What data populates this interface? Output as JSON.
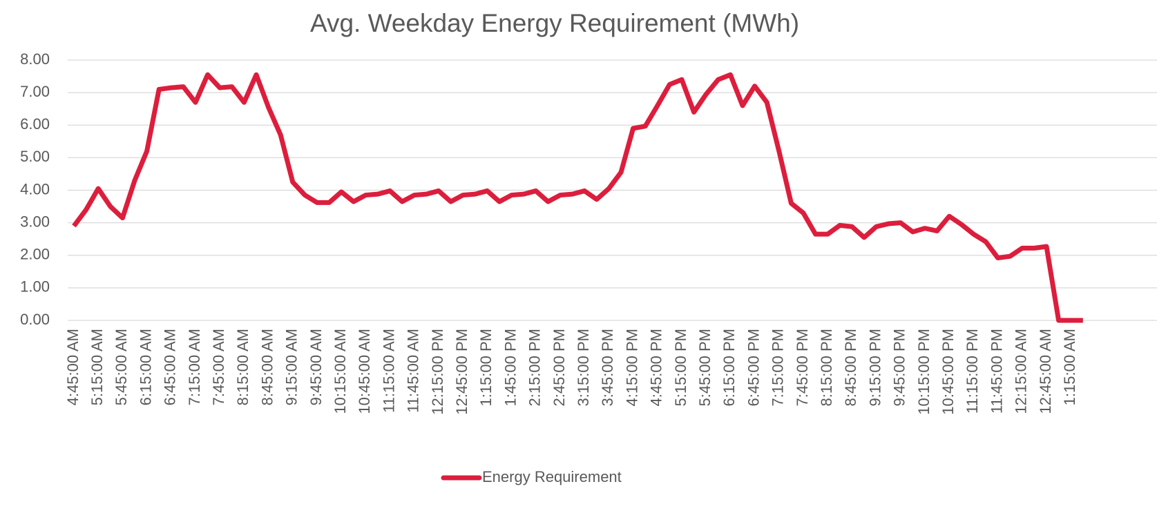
{
  "chart_data": {
    "type": "line",
    "title": "Avg. Weekday Energy Requirement (MWh)",
    "categories": [
      "4:45:00 AM",
      null,
      "5:15:00 AM",
      null,
      "5:45:00 AM",
      null,
      "6:15:00 AM",
      null,
      "6:45:00 AM",
      null,
      "7:15:00 AM",
      null,
      "7:45:00 AM",
      null,
      "8:15:00 AM",
      null,
      "8:45:00 AM",
      null,
      "9:15:00 AM",
      null,
      "9:45:00 AM",
      null,
      "10:15:00 AM",
      null,
      "10:45:00 AM",
      null,
      "11:15:00 AM",
      null,
      "11:45:00 AM",
      null,
      "12:15:00 PM",
      null,
      "12:45:00 PM",
      null,
      "1:15:00 PM",
      null,
      "1:45:00 PM",
      null,
      "2:15:00 PM",
      null,
      "2:45:00 PM",
      null,
      "3:15:00 PM",
      null,
      "3:45:00 PM",
      null,
      "4:15:00 PM",
      null,
      "4:45:00 PM",
      null,
      "5:15:00 PM",
      null,
      "5:45:00 PM",
      null,
      "6:15:00 PM",
      null,
      "6:45:00 PM",
      null,
      "7:15:00 PM",
      null,
      "7:45:00 PM",
      null,
      "8:15:00 PM",
      null,
      "8:45:00 PM",
      null,
      "9:15:00 PM",
      null,
      "9:45:00 PM",
      null,
      "10:15:00 PM",
      null,
      "10:45:00 PM",
      null,
      "11:15:00 PM",
      null,
      "11:45:00 PM",
      null,
      "12:15:00 AM",
      null,
      "12:45:00 AM",
      null,
      "1:15:00 AM",
      null
    ],
    "series": [
      {
        "name": "Energy Requirement",
        "color": "#dc1e3c",
        "values": [
          2.9,
          3.4,
          4.05,
          3.5,
          3.15,
          4.3,
          5.2,
          7.1,
          7.15,
          7.18,
          6.7,
          7.55,
          7.15,
          7.18,
          6.7,
          7.55,
          6.55,
          5.7,
          4.25,
          3.85,
          3.62,
          3.62,
          3.95,
          3.65,
          3.85,
          3.88,
          3.98,
          3.65,
          3.85,
          3.88,
          3.98,
          3.65,
          3.85,
          3.88,
          3.98,
          3.65,
          3.85,
          3.88,
          3.98,
          3.65,
          3.85,
          3.88,
          3.98,
          3.72,
          4.05,
          4.55,
          5.9,
          5.97,
          6.6,
          7.25,
          7.4,
          6.4,
          6.95,
          7.4,
          7.55,
          6.6,
          7.2,
          6.7,
          5.2,
          3.6,
          3.3,
          2.65,
          2.65,
          2.92,
          2.88,
          2.55,
          2.88,
          2.97,
          3.0,
          2.72,
          2.83,
          2.75,
          3.2,
          2.95,
          2.65,
          2.42,
          1.92,
          1.97,
          2.22,
          2.22,
          2.27,
          0,
          0,
          0
        ]
      }
    ],
    "ylim": [
      0,
      8
    ],
    "yticks": [
      {
        "value": 0,
        "label": "0.00"
      },
      {
        "value": 1,
        "label": "1.00"
      },
      {
        "value": 2,
        "label": "2.00"
      },
      {
        "value": 3,
        "label": "3.00"
      },
      {
        "value": 4,
        "label": "4.00"
      },
      {
        "value": 5,
        "label": "5.00"
      },
      {
        "value": 6,
        "label": "6.00"
      },
      {
        "value": 7,
        "label": "7.00"
      },
      {
        "value": 8,
        "label": "8.00"
      }
    ],
    "grid": true,
    "legend": "bottom"
  }
}
